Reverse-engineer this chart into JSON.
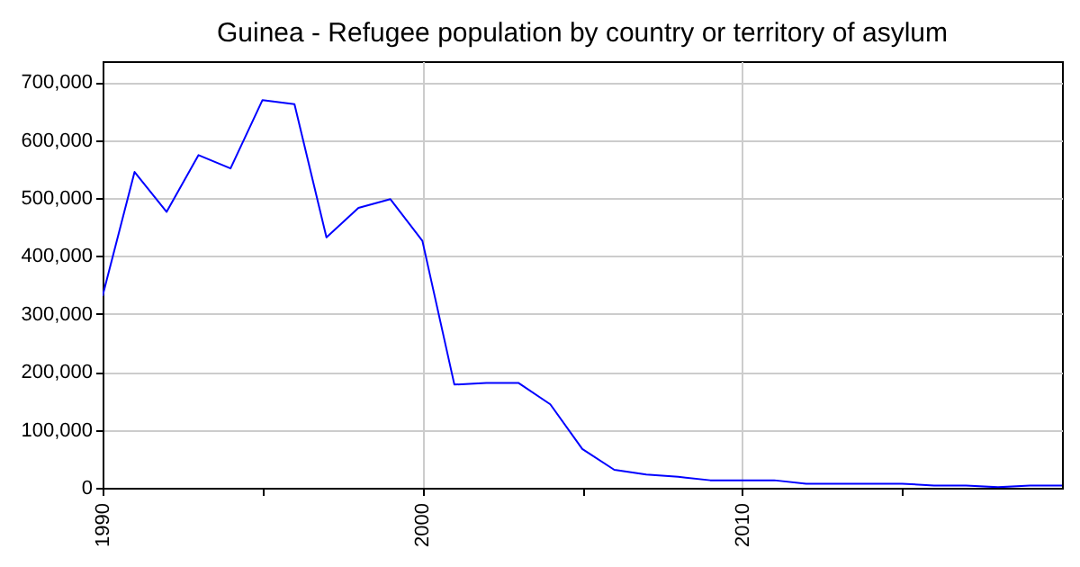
{
  "chart_data": {
    "type": "line",
    "title": "Guinea - Refugee population by country or territory of asylum",
    "x": [
      1990,
      1991,
      1992,
      1993,
      1994,
      1995,
      1996,
      1997,
      1998,
      1999,
      2000,
      2001,
      2002,
      2003,
      2004,
      2005,
      2006,
      2007,
      2008,
      2009,
      2010,
      2011,
      2012,
      2013,
      2014,
      2015,
      2016,
      2017,
      2018,
      2019,
      2020
    ],
    "series": [
      {
        "color": "#0000ff",
        "values": [
          331000,
          545000,
          476000,
          574000,
          551000,
          669000,
          662000,
          432000,
          483000,
          498000,
          426000,
          178000,
          181000,
          181000,
          144000,
          67000,
          31000,
          23000,
          19000,
          13000,
          13000,
          13000,
          7000,
          7000,
          7000,
          7000,
          4000,
          4000,
          1000,
          4000,
          4000
        ]
      }
    ],
    "xlim": [
      1990,
      2020
    ],
    "xticks": [
      1990,
      {
        "value": 1995,
        "label": null
      },
      2000,
      {
        "value": 2005,
        "label": null
      },
      2010,
      {
        "value": 2015,
        "label": null
      }
    ],
    "ylim": [
      0,
      736000
    ],
    "yticks": [
      0,
      {
        "value": 100000,
        "label": "100,000"
      },
      {
        "value": 200000,
        "label": "200,000"
      },
      {
        "value": 300000,
        "label": "300,000"
      },
      {
        "value": 400000,
        "label": "400,000"
      },
      {
        "value": 500000,
        "label": "500,000"
      },
      {
        "value": 600000,
        "label": "600,000"
      },
      {
        "value": 700000,
        "label": "700,000"
      }
    ],
    "grid": true,
    "marker": "none",
    "line_style": "solid"
  }
}
